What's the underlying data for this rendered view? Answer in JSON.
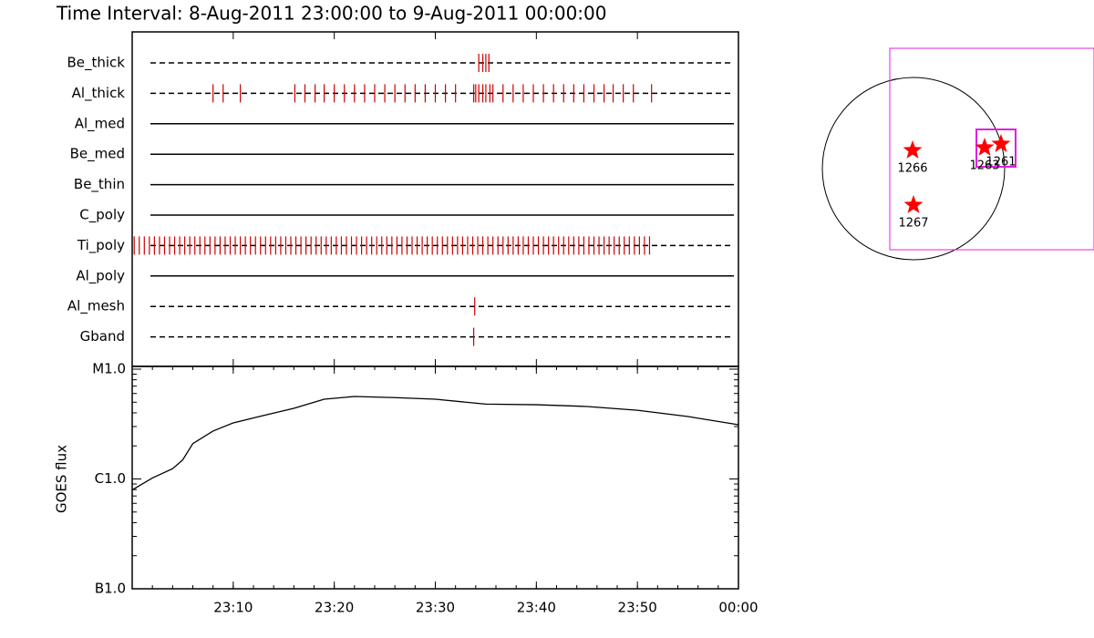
{
  "title": "Time Interval:  8-Aug-2011 23:00:00 to  9-Aug-2011 00:00:00",
  "chart_data": [
    {
      "type": "event",
      "categories": [
        "Be_thick",
        "Al_thick",
        "Al_med",
        "Be_med",
        "Be_thin",
        "C_poly",
        "Ti_poly",
        "Al_poly",
        "Al_mesh",
        "Gband"
      ],
      "line_styles": [
        "dashed",
        "dashed",
        "solid",
        "solid",
        "solid",
        "solid",
        "dashed",
        "solid",
        "dashed",
        "dashed"
      ],
      "color": "#cc0000",
      "events": [
        [
          34.3,
          34.7,
          35.0,
          35.3
        ],
        [
          8.0,
          9.0,
          10.7,
          16.1,
          17.1,
          18.1,
          19.0,
          20.0,
          21.0,
          22.0,
          23.0,
          24.0,
          25.0,
          26.0,
          27.0,
          28.0,
          29.0,
          30.0,
          31.0,
          32.0,
          33.8,
          34.0,
          34.3,
          34.7,
          35.0,
          35.4,
          35.7,
          36.7,
          37.7,
          38.7,
          39.7,
          40.7,
          41.7,
          42.7,
          43.7,
          44.7,
          45.7,
          46.7,
          47.6,
          48.6,
          49.6,
          51.4
        ],
        [],
        [],
        [],
        [],
        [
          0.2,
          0.7,
          1.2,
          1.7,
          2.2,
          2.7,
          3.2,
          3.7,
          4.2,
          4.7,
          5.2,
          5.7,
          6.2,
          6.7,
          7.2,
          7.7,
          8.2,
          8.7,
          9.2,
          9.7,
          10.2,
          10.7,
          11.2,
          11.7,
          12.2,
          12.7,
          13.2,
          13.7,
          14.2,
          14.7,
          15.2,
          15.7,
          16.2,
          16.7,
          17.2,
          17.7,
          18.2,
          18.7,
          19.2,
          19.7,
          20.2,
          20.7,
          21.2,
          21.7,
          22.2,
          22.7,
          23.2,
          23.7,
          24.2,
          24.7,
          25.2,
          25.7,
          26.2,
          26.7,
          27.2,
          27.7,
          28.2,
          28.7,
          29.2,
          29.7,
          30.2,
          30.7,
          31.2,
          31.7,
          32.2,
          32.7,
          33.2,
          33.7,
          34.2,
          34.7,
          35.2,
          35.7,
          36.2,
          36.7,
          37.2,
          37.7,
          38.2,
          38.7,
          39.2,
          39.7,
          40.2,
          40.7,
          41.2,
          41.7,
          42.2,
          42.7,
          43.2,
          43.7,
          44.2,
          44.7,
          45.2,
          45.7,
          46.2,
          46.7,
          47.2,
          47.7,
          48.2,
          48.7,
          49.2,
          49.7,
          50.2,
          50.7,
          51.2
        ],
        [],
        [
          33.9
        ],
        [
          33.8
        ]
      ],
      "xlim": [
        0,
        60
      ],
      "xticks": [
        {
          "value": 10,
          "label": "23:10"
        },
        {
          "value": 20,
          "label": "23:20"
        },
        {
          "value": 30,
          "label": "23:30"
        },
        {
          "value": 40,
          "label": "23:40"
        },
        {
          "value": 50,
          "label": "23:50"
        },
        {
          "value": 60,
          "label": "00:00"
        }
      ]
    },
    {
      "type": "line",
      "ylabel": "GOES flux",
      "x": [
        0,
        2,
        4,
        5,
        6,
        8,
        10,
        13,
        16,
        19,
        22,
        26,
        30,
        35,
        40,
        45,
        50,
        55,
        60
      ],
      "values": [
        7.95e-07,
        1.02e-06,
        1.24e-06,
        1.49e-06,
        2.1e-06,
        2.73e-06,
        3.24e-06,
        3.78e-06,
        4.4e-06,
        5.32e-06,
        5.64e-06,
        5.5e-06,
        5.32e-06,
        4.8e-06,
        4.74e-06,
        4.57e-06,
        4.22e-06,
        3.7e-06,
        3.12e-06
      ],
      "color": "#000000",
      "log_scale": true,
      "xlim": [
        0,
        60
      ],
      "xticks": [
        {
          "value": 10,
          "label": "23:10"
        },
        {
          "value": 20,
          "label": "23:20"
        },
        {
          "value": 30,
          "label": "23:30"
        },
        {
          "value": 40,
          "label": "23:40"
        },
        {
          "value": 50,
          "label": "23:50"
        },
        {
          "value": 60,
          "label": "00:00"
        }
      ],
      "ylim": [
        1e-07,
        1e-05
      ],
      "yticks": [
        {
          "value": 1e-07,
          "label": "B1.0"
        },
        {
          "value": 1e-06,
          "label": "C1.0"
        },
        {
          "value": 1e-05,
          "label": "M1.0"
        }
      ]
    }
  ],
  "map": {
    "regions": [
      "1266",
      "1267",
      "1263",
      "1261"
    ]
  }
}
